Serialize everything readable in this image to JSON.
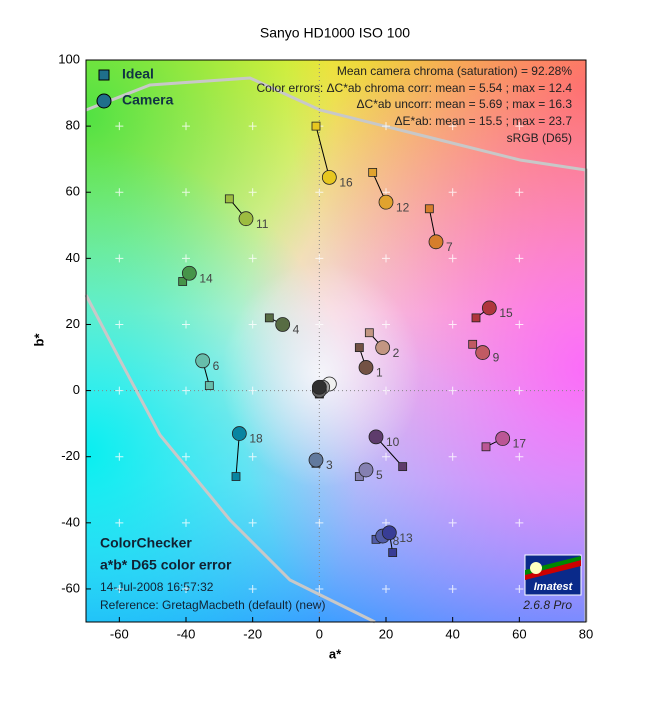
{
  "chart_data": {
    "type": "scatter",
    "title": "Sanyo HD1000 ISO 100",
    "xlabel": "a*",
    "ylabel": "b*",
    "xlim": [
      -70,
      80
    ],
    "ylim": [
      -70,
      100
    ],
    "xticks": [
      -60,
      -40,
      -20,
      0,
      20,
      40,
      60,
      80
    ],
    "yticks": [
      -60,
      -40,
      -20,
      0,
      20,
      40,
      60,
      80,
      100
    ],
    "grid": true,
    "legend_position": "upper left",
    "labels": [
      "1",
      "2",
      "3",
      "4",
      "5",
      "6",
      "7",
      "8",
      "9",
      "10",
      "11",
      "12",
      "13",
      "14",
      "15",
      "16",
      "17",
      "18",
      null,
      null,
      null,
      null
    ],
    "colors": [
      "#735244",
      "#c29682",
      "#627a9d",
      "#576c43",
      "#8580b1",
      "#67bdaa",
      "#d67e2c",
      "#505ba6",
      "#c15a63",
      "#5e3c6c",
      "#9dbc40",
      "#e0a32e",
      "#383d96",
      "#469449",
      "#af363c",
      "#e7c71f",
      "#bb5695",
      "#0885a1",
      "#f0f0f0",
      "#a0a0a0",
      "#606060",
      "#303030"
    ],
    "series": [
      {
        "name": "Ideal",
        "color": "#1f6f8b",
        "marker": "square",
        "x": [
          12,
          15,
          -1,
          -15,
          12,
          -33,
          33,
          17,
          46,
          25,
          -27,
          16,
          22,
          -41,
          47,
          -1,
          50,
          -25,
          0,
          0,
          0,
          0
        ],
        "values": [
          13,
          17.5,
          -22,
          22,
          -26,
          1.5,
          55,
          -45,
          14,
          -23,
          58,
          66,
          -49,
          33,
          22,
          80,
          -17,
          -26,
          0,
          0,
          -1,
          -1
        ]
      },
      {
        "name": "Camera",
        "color": "#1f6f8b",
        "marker": "circle",
        "x": [
          14,
          19,
          -1,
          -11,
          14,
          -35,
          35,
          19,
          49,
          17,
          -22,
          20,
          21,
          -39,
          51,
          3,
          55,
          -24,
          3,
          1,
          0,
          0
        ],
        "values": [
          7,
          13,
          -21,
          20,
          -24,
          9,
          45,
          -44,
          11.5,
          -14,
          52,
          57,
          -43,
          35.5,
          25,
          64.5,
          -14.5,
          -13,
          2,
          1,
          0,
          1
        ]
      }
    ],
    "annotations": [
      "Mean camera chroma (saturation) = 92.28%",
      "Color errors: ΔC*ab chroma corr:  mean = 5.54 ;  max = 12.4",
      "ΔC*ab uncorr:  mean = 5.69 ;  max = 16.3",
      "ΔE*ab:  mean = 15.5 ;  max = 23.7",
      "sRGB (D65)"
    ],
    "footer": [
      "ColorChecker",
      "a*b* D65 color error",
      "14-Jul-2008 16:57:32",
      "Reference: GretagMacbeth (default) (new)"
    ],
    "logo": "Imatest",
    "version": "2.6.8  Pro"
  }
}
